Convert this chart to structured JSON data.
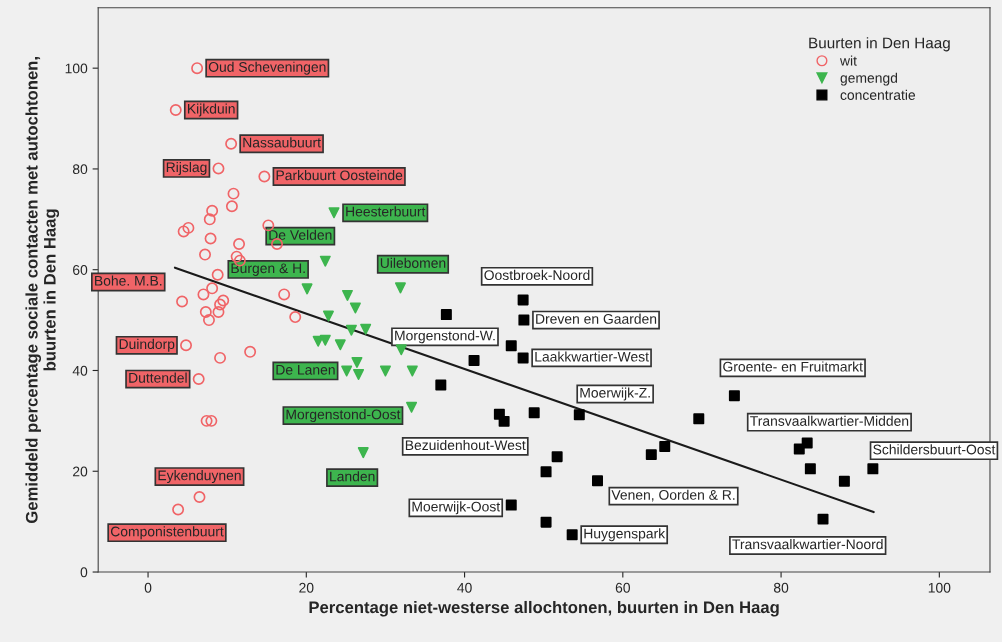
{
  "chart_data": {
    "type": "scatter",
    "xlabel": "Percentage niet-westerse allochtonen, buurten in Den Haag",
    "ylabel": "Gemiddeld percentage sociale contacten met autochtonen,\nbuurten in Den Haag",
    "legend_title": "Buurten in Den Haag",
    "legend": "top right",
    "grid": false,
    "xlim": [
      -6.3,
      106.4
    ],
    "xticks": [
      0,
      20,
      40,
      60,
      80,
      100
    ],
    "ylim": [
      0,
      112
    ],
    "yticks": [
      0,
      20,
      40,
      60,
      80,
      100
    ],
    "series": [
      {
        "name": "wit",
        "marker": "circle",
        "color": "#f06467",
        "x": [
          6.2,
          3.5,
          10.5,
          8.9,
          14.7,
          4.3,
          4.8,
          6.4,
          6.5,
          3.8,
          10.8,
          10.6,
          8.1,
          7.8,
          15.2,
          5.1,
          4.5,
          7.9,
          11.5,
          16.3,
          7.2,
          11.2,
          11.6,
          8.8,
          7.0,
          8.1,
          9.5,
          9.1,
          8.9,
          7.3,
          7.7,
          17.2,
          18.6,
          12.9,
          9.1,
          7.4,
          8.0
        ],
        "values": [
          100,
          91.7,
          85.0,
          80.1,
          78.5,
          53.7,
          45.0,
          38.3,
          14.9,
          12.4,
          75.1,
          72.6,
          71.7,
          70.0,
          68.8,
          68.3,
          67.6,
          66.2,
          65.1,
          65.1,
          63.0,
          62.6,
          61.8,
          59.0,
          55.1,
          56.3,
          53.9,
          53.1,
          51.6,
          51.6,
          50.0,
          55.1,
          50.6,
          43.7,
          42.5,
          30.0,
          30.0
        ],
        "value_labels": [
          "Oud Scheveningen",
          "Kijkduin",
          "Nassaubuurt",
          "Rijslag",
          "Parkbuurt Oosteinde",
          "Bohe. M.B.",
          "Duindorp",
          "Duttendel",
          "Eykenduynen",
          "Componistenbuurt",
          null,
          null,
          null,
          null,
          null,
          null,
          null,
          null,
          null,
          null,
          null,
          null,
          null,
          null,
          null,
          null,
          null,
          null,
          null,
          null,
          null,
          null,
          null,
          null,
          null,
          null,
          null
        ]
      },
      {
        "name": "gemengd",
        "marker": "triangle",
        "color": "#3db54e",
        "x": [
          23.5,
          22.4,
          20.1,
          31.9,
          25.1,
          33.3,
          27.2,
          25.2,
          26.2,
          22.8,
          25.7,
          27.5,
          21.5,
          22.4,
          24.3,
          32.0,
          26.4,
          26.6,
          30.0,
          33.4
        ],
        "values": [
          71.3,
          61.7,
          56.2,
          56.4,
          39.9,
          32.7,
          23.7,
          54.9,
          52.4,
          50.8,
          48.0,
          48.2,
          45.8,
          46.0,
          45.1,
          44.1,
          41.6,
          39.2,
          39.9,
          39.9
        ],
        "value_labels": [
          "Heesterbuurt",
          "De Velden",
          "Burgen & H.",
          "Uilebomen",
          "De Lanen",
          "Morgenstond-Oost",
          "Landen",
          null,
          null,
          null,
          null,
          null,
          null,
          null,
          null,
          null,
          null,
          null,
          null,
          null
        ]
      },
      {
        "name": "concentratie",
        "marker": "square",
        "color": "#000000",
        "x": [
          47.4,
          47.5,
          37.7,
          47.4,
          54.5,
          45.0,
          56.8,
          45.9,
          53.6,
          74.1,
          83.3,
          91.6,
          85.3,
          45.9,
          41.2,
          37.0,
          44.4,
          48.8,
          51.7,
          50.3,
          63.6,
          65.3,
          69.6,
          50.3,
          82.3,
          83.7,
          88.0
        ],
        "values": [
          54.0,
          50.0,
          51.1,
          42.5,
          31.2,
          29.9,
          18.1,
          13.3,
          7.4,
          35.0,
          25.6,
          20.5,
          10.5,
          44.9,
          42.0,
          37.1,
          31.3,
          31.6,
          22.9,
          19.9,
          23.3,
          24.9,
          30.4,
          9.9,
          24.4,
          20.5,
          18.0
        ],
        "value_labels": [
          "Oostbroek-Noord",
          "Dreven en Gaarden",
          "Morgenstond-W.",
          "Laakkwartier-West",
          "Moerwijk-Z.",
          "Bezuidenhout-West",
          "Venen, Oorden & R.",
          "Moerwijk-Oost",
          "Huygenspark",
          "Groente- en Fruitmarkt",
          "Transvaalkwartier-Midden",
          "Schildersbuurt-Oost",
          "Transvaalkwartier-Noord",
          null,
          null,
          null,
          null,
          null,
          null,
          null,
          null,
          null,
          null,
          null,
          null,
          null,
          null
        ]
      },
      {
        "type": "line",
        "color": "#1a1a1a",
        "x": [
          3.4,
          91.7
        ],
        "values": [
          60.4,
          11.9
        ]
      }
    ]
  }
}
